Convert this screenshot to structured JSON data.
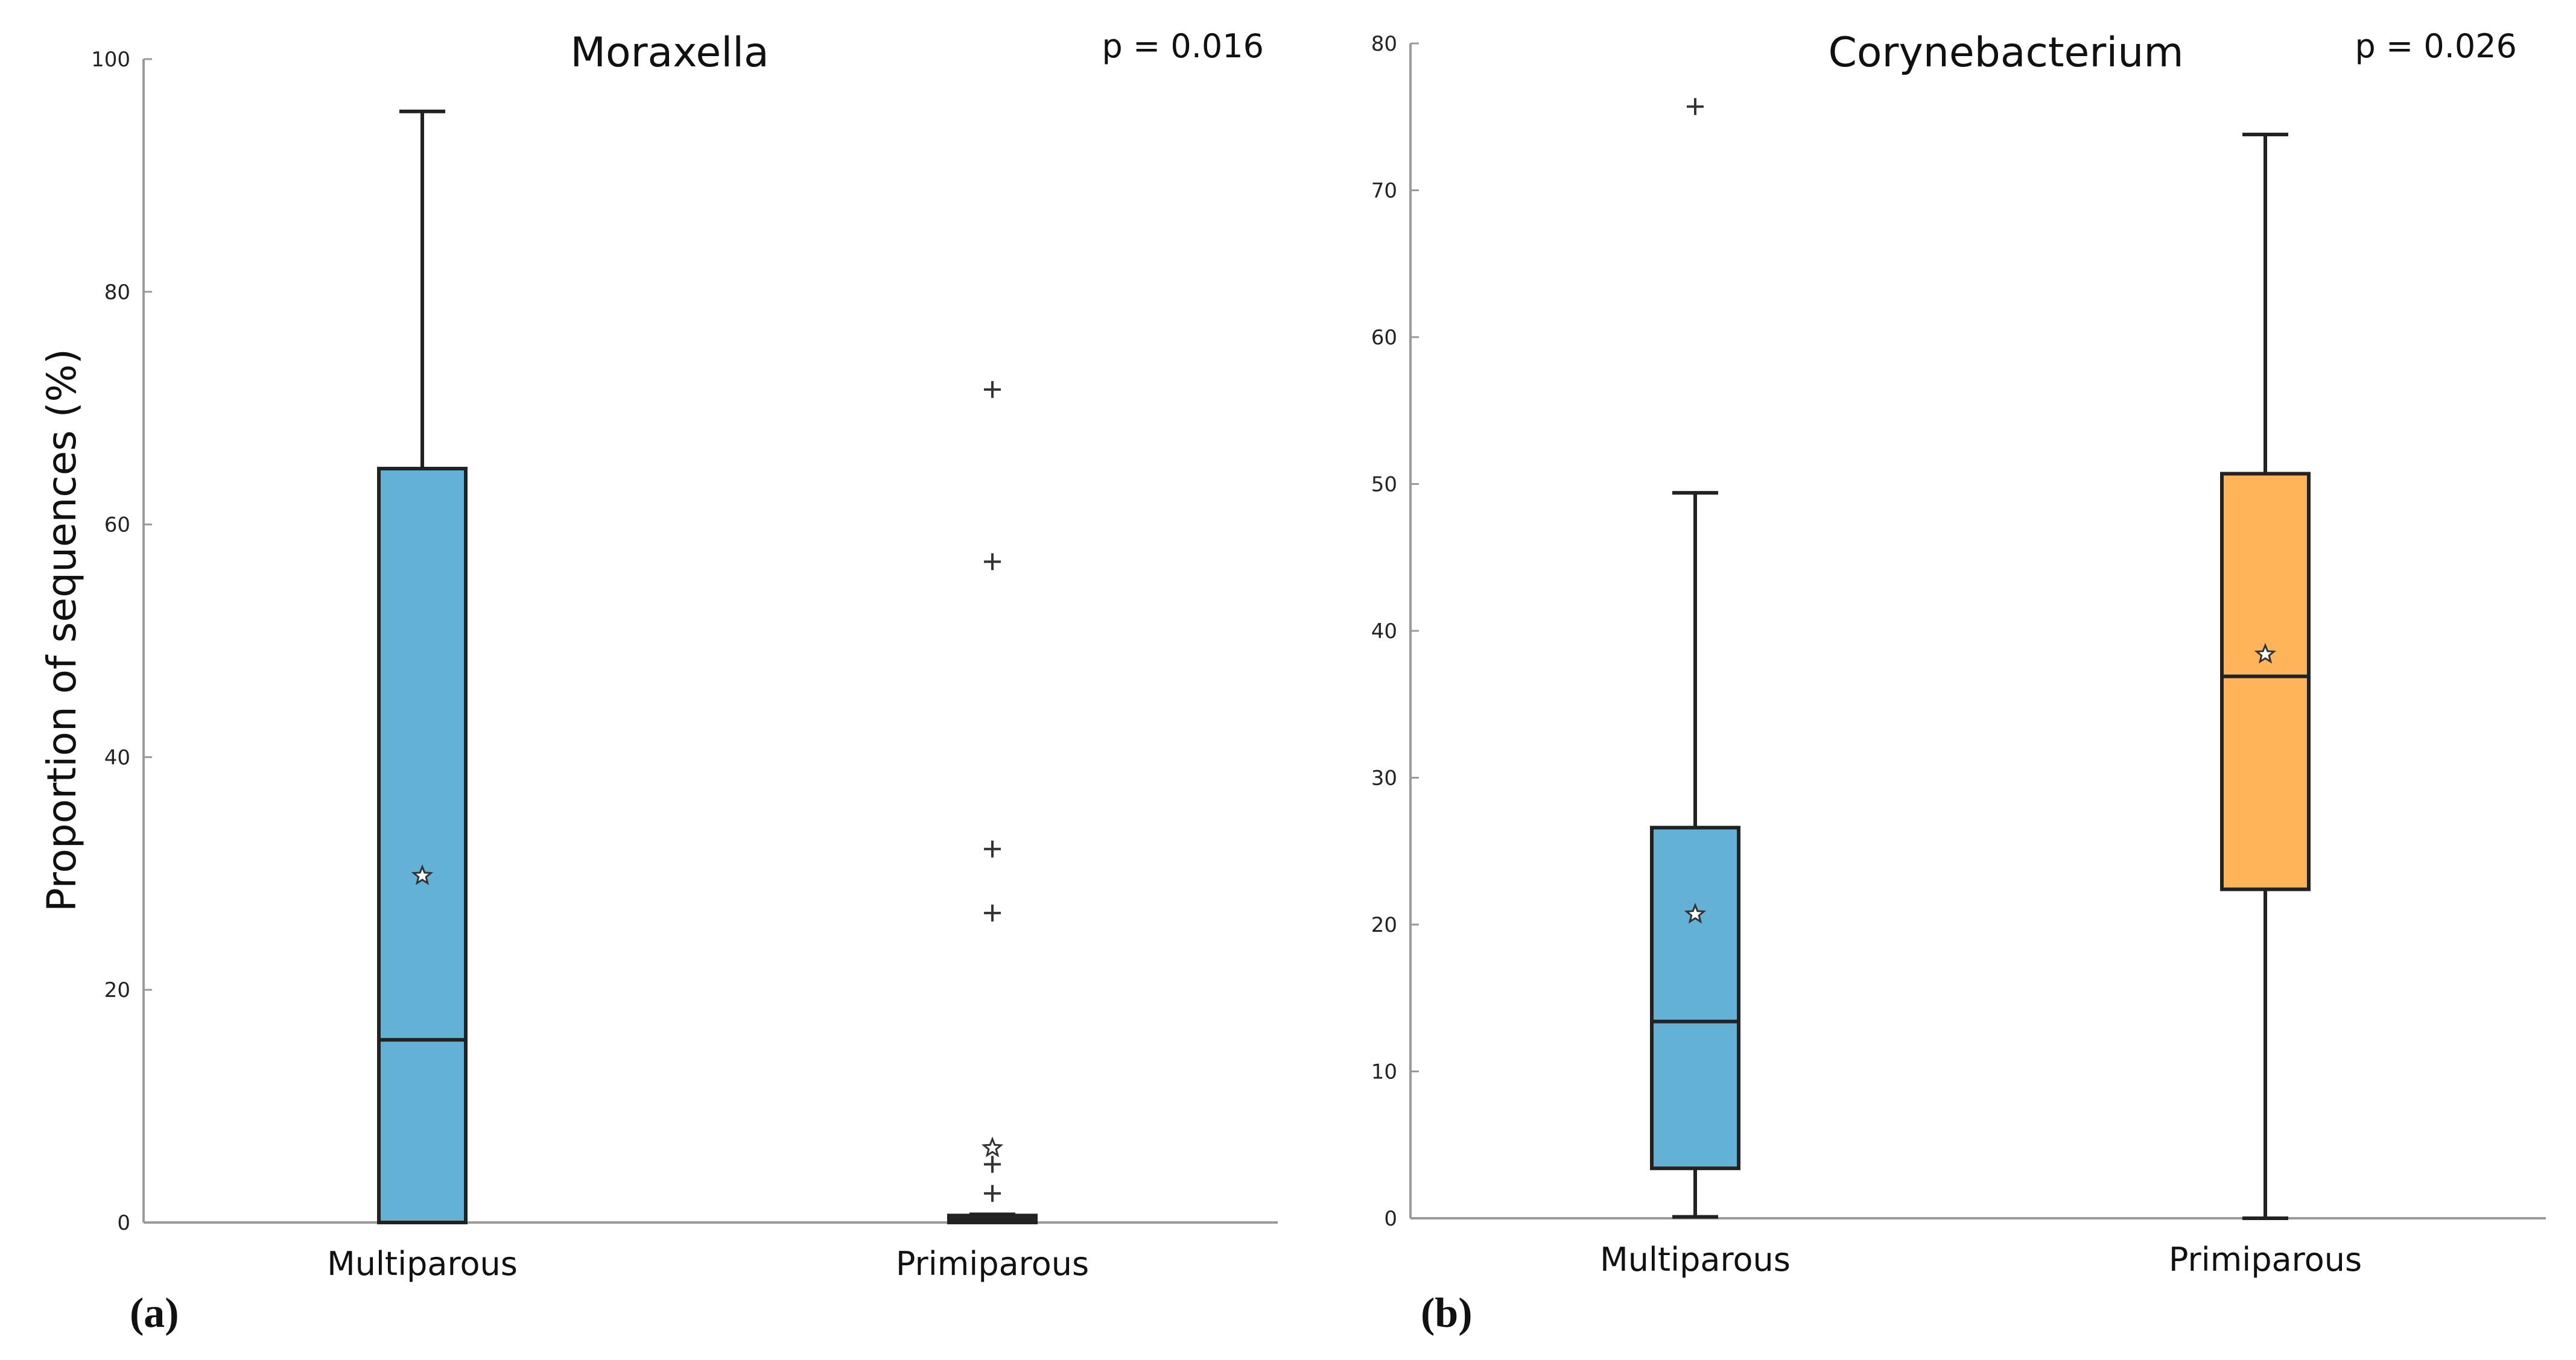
{
  "figure": {
    "ylabel": "Proportion of sequences (%)"
  },
  "colors": {
    "multiparous": "#63b2d6",
    "primiparous": "#ffb45a",
    "axis": "#9a9a9a",
    "stroke": "#222222"
  },
  "chart_data": [
    {
      "type": "box",
      "panel_label": "(a)",
      "title": "Moraxella",
      "pvalue": "p = 0.016",
      "ylabel": "Proportion of sequences (%)",
      "ylim": [
        0,
        100
      ],
      "yticks": [
        0,
        20,
        40,
        60,
        80,
        100
      ],
      "categories": [
        "Multiparous",
        "Primiparous"
      ],
      "boxes": [
        {
          "name": "Multiparous",
          "min": 0,
          "q1": 0,
          "median": 15.7,
          "q3": 64.8,
          "max": 95.5,
          "mean": 29.8,
          "outliers": []
        },
        {
          "name": "Primiparous",
          "min": 0,
          "q1": 0,
          "median": 0.3,
          "q3": 0.6,
          "max": 0.7,
          "mean": 6.4,
          "outliers": [
            71.6,
            56.8,
            32.1,
            26.6,
            5.0,
            2.5
          ]
        }
      ]
    },
    {
      "type": "box",
      "panel_label": "(b)",
      "title": "Corynebacterium",
      "pvalue": "p = 0.026",
      "ylabel": "",
      "ylim": [
        0,
        80
      ],
      "yticks": [
        0,
        10,
        20,
        30,
        40,
        50,
        60,
        70,
        80
      ],
      "categories": [
        "Multiparous",
        "Primiparous"
      ],
      "boxes": [
        {
          "name": "Multiparous",
          "min": 0.1,
          "q1": 3.4,
          "median": 13.4,
          "q3": 26.6,
          "max": 49.4,
          "mean": 20.7,
          "outliers": [
            75.7
          ]
        },
        {
          "name": "Primiparous",
          "min": 0,
          "q1": 22.4,
          "median": 36.9,
          "q3": 50.7,
          "max": 73.8,
          "mean": 38.4,
          "outliers": []
        }
      ]
    }
  ]
}
